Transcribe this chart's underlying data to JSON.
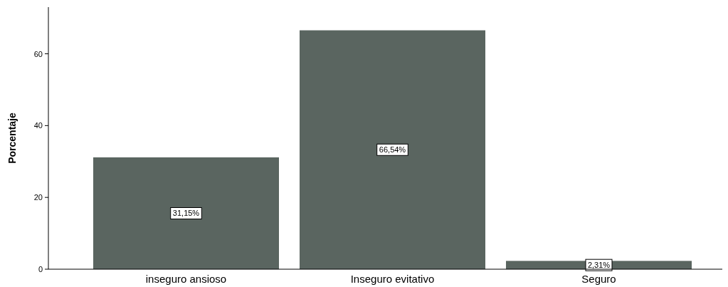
{
  "chart_data": {
    "type": "bar",
    "ylabel": "Porcentaje",
    "categories": [
      "inseguro ansioso",
      "Inseguro evitativo",
      "Seguro"
    ],
    "values": [
      31.15,
      66.54,
      2.31
    ],
    "value_labels": [
      "31,15%",
      "66,54%",
      "2,31%"
    ],
    "color": "#5a6560",
    "ylim": [
      0,
      73
    ],
    "yticks": [
      0,
      20,
      40,
      60
    ],
    "grid": false
  }
}
